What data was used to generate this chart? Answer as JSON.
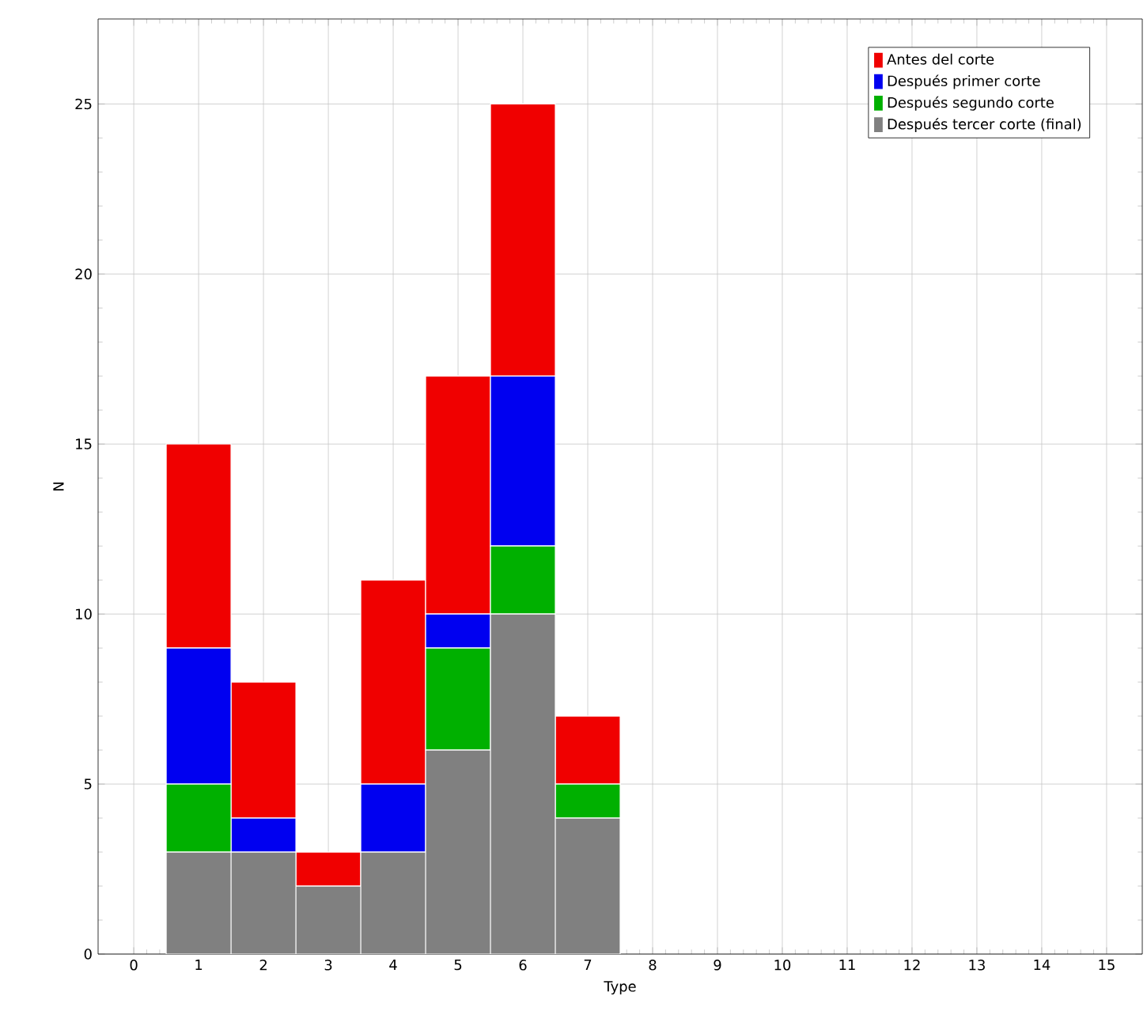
{
  "chart_data": {
    "type": "bar",
    "stacked": true,
    "xlabel": "Type",
    "ylabel": "N",
    "x": [
      1,
      2,
      3,
      4,
      5,
      6,
      7
    ],
    "series": [
      {
        "name": "Después tercer corte (final)",
        "color": "#808080",
        "values": [
          3,
          3,
          2,
          3,
          6,
          10,
          4
        ]
      },
      {
        "name": "Después segundo corte",
        "color": "#00b000",
        "values": [
          2,
          0,
          0,
          0,
          3,
          2,
          1
        ]
      },
      {
        "name": "Después primer corte",
        "color": "#0000f0",
        "values": [
          4,
          1,
          0,
          2,
          1,
          5,
          0
        ]
      },
      {
        "name": "Antes del corte",
        "color": "#f00000",
        "values": [
          6,
          4,
          1,
          6,
          7,
          8,
          2
        ]
      }
    ],
    "xlim": [
      -0.55,
      15.55
    ],
    "xticks": [
      0,
      1,
      2,
      3,
      4,
      5,
      6,
      7,
      8,
      9,
      10,
      11,
      12,
      13,
      14,
      15
    ],
    "ylim": [
      0,
      27.5
    ],
    "yticks": [
      0,
      5,
      10,
      15,
      20,
      25
    ],
    "grid": true,
    "legend": "top right"
  }
}
